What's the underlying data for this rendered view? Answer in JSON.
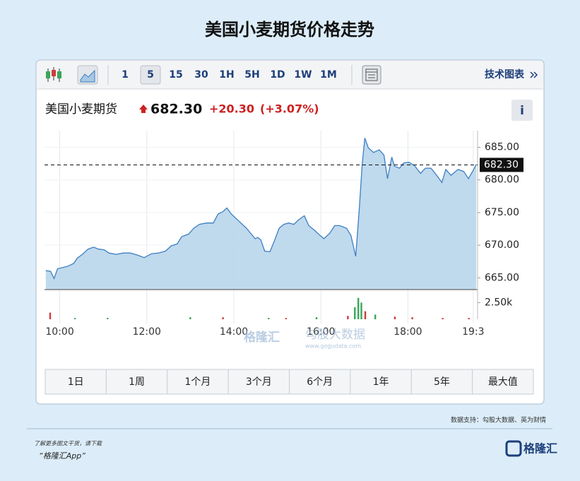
{
  "title": "美国小麦期货价格走势",
  "toolbar": {
    "intervals": [
      "1",
      "5",
      "15",
      "30",
      "1H",
      "5H",
      "1D",
      "1W",
      "1M"
    ],
    "tech_chart": "技术图表"
  },
  "quote": {
    "name": "美国小麦期货",
    "price": "682.30",
    "change": "+20.30",
    "change_pct": "(+3.07%)",
    "info": "i"
  },
  "chart_data": {
    "type": "area",
    "color": "#3d7fc1",
    "fill": "#bcd7ec",
    "grid": true,
    "x": [
      9.68,
      9.79,
      9.87,
      9.95,
      10.08,
      10.19,
      10.32,
      10.4,
      10.52,
      10.65,
      10.78,
      10.89,
      11.02,
      11.13,
      11.3,
      11.46,
      11.62,
      11.78,
      11.94,
      12.11,
      12.27,
      12.43,
      12.56,
      12.7,
      12.8,
      12.96,
      13.08,
      13.21,
      13.37,
      13.53,
      13.64,
      13.74,
      13.84,
      13.94,
      14.05,
      14.16,
      14.29,
      14.39,
      14.49,
      14.55,
      14.62,
      14.71,
      14.83,
      14.94,
      15.04,
      15.15,
      15.26,
      15.38,
      15.49,
      15.62,
      15.72,
      15.85,
      15.98,
      16.07,
      16.2,
      16.32,
      16.43,
      16.59,
      16.69,
      16.8,
      16.88,
      16.95,
      17.01,
      17.09,
      17.21,
      17.34,
      17.45,
      17.53,
      17.63,
      17.69,
      17.81,
      17.9,
      18.02,
      18.15,
      18.29,
      18.4,
      18.53,
      18.66,
      18.78,
      18.87,
      18.99,
      19.15,
      19.28,
      19.39,
      19.51,
      19.57
    ],
    "values": [
      666.1,
      666.0,
      664.9,
      666.4,
      666.6,
      666.8,
      667.2,
      668.0,
      668.6,
      669.4,
      669.7,
      669.4,
      669.3,
      668.8,
      668.6,
      668.8,
      668.8,
      668.5,
      668.1,
      668.7,
      668.8,
      669.1,
      669.9,
      670.2,
      671.3,
      671.7,
      672.6,
      673.2,
      673.4,
      673.4,
      674.8,
      675.1,
      675.7,
      674.8,
      674.1,
      673.4,
      672.6,
      671.8,
      671.0,
      671.2,
      670.8,
      669.1,
      669.0,
      670.8,
      672.6,
      673.2,
      673.4,
      673.2,
      673.9,
      674.5,
      673.0,
      672.3,
      671.5,
      671.0,
      671.8,
      673.0,
      673.0,
      672.6,
      671.5,
      668.3,
      675.3,
      682.4,
      686.4,
      684.9,
      684.2,
      684.6,
      683.8,
      680.2,
      683.5,
      682.1,
      681.8,
      682.6,
      682.7,
      682.2,
      681.0,
      681.8,
      681.8,
      680.7,
      679.6,
      681.6,
      680.7,
      681.6,
      681.3,
      680.2,
      681.6,
      682.4
    ],
    "xlim": [
      9.65,
      19.6
    ],
    "ylim": [
      663.2,
      687.0
    ],
    "xticks": [
      {
        "value": 10,
        "label": "10:00"
      },
      {
        "value": 12,
        "label": "12:00"
      },
      {
        "value": 14,
        "label": "14:00"
      },
      {
        "value": 16,
        "label": "16:00"
      },
      {
        "value": 18,
        "label": "18:00"
      },
      {
        "value": 19.5,
        "label": "19:3"
      }
    ],
    "yticks": [
      {
        "value": 665,
        "label": "665.00"
      },
      {
        "value": 670,
        "label": "670.00"
      },
      {
        "value": 675,
        "label": "675.00"
      },
      {
        "value": 680,
        "label": "680.00"
      },
      {
        "value": 685,
        "label": "685.00"
      }
    ],
    "last_price": {
      "value": 682.3,
      "label": "682.30"
    },
    "volume": {
      "x": [
        9.78,
        10.35,
        11.1,
        13.0,
        13.75,
        14.8,
        15.2,
        15.9,
        16.62,
        16.78,
        16.86,
        16.93,
        17.02,
        17.25,
        17.7,
        18.1,
        18.8,
        19.4
      ],
      "values": [
        1000,
        200,
        200,
        300,
        300,
        200,
        200,
        300,
        500,
        1800,
        3200,
        2500,
        1200,
        700,
        400,
        300,
        200,
        200
      ],
      "colors": [
        "#d23b3b",
        "#3aa65a",
        "#3aa65a",
        "#3aa65a",
        "#d23b3b",
        "#3aa65a",
        "#d23b3b",
        "#3aa65a",
        "#d23b3b",
        "#3aa65a",
        "#3aa65a",
        "#3aa65a",
        "#d23b3b",
        "#3aa65a",
        "#d23b3b",
        "#d23b3b",
        "#d23b3b",
        "#d23b3b"
      ],
      "ylim": [
        0,
        3600
      ],
      "yticks": [
        {
          "value": 2500,
          "label": "2.50k"
        }
      ]
    }
  },
  "ranges": [
    "1日",
    "1周",
    "1个月",
    "3个月",
    "6个月",
    "1年",
    "5年",
    "最大值"
  ],
  "source": "数据支持：勾股大数据、英为财情",
  "watermarks": [
    "格隆汇",
    "勾股大数据",
    "www.gogudata.com"
  ],
  "footer": {
    "promo": "了解更多图文干货，请下载",
    "app": "“格隆汇App”",
    "logo": "格隆汇"
  }
}
